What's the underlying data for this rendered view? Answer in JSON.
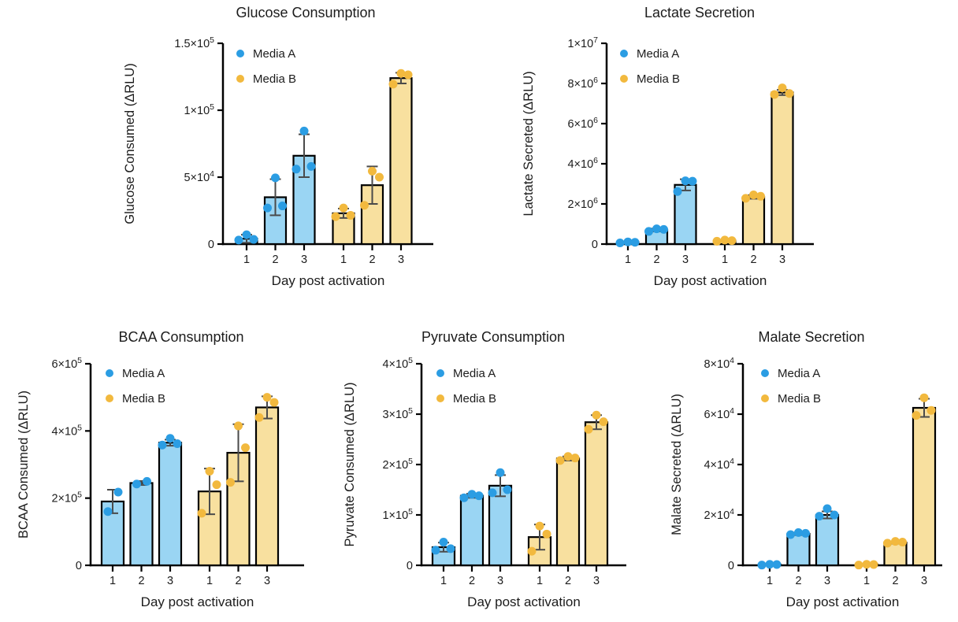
{
  "figure_title": "Metabolite consumption and secretion bar charts",
  "colors": {
    "media_a_point": "#2B9DE3",
    "media_a_fill": "#9AD5F3",
    "media_b_point": "#F2B93E",
    "media_b_fill": "#F8E09F",
    "error_bar": "#4A4A4A",
    "axis": "#000000",
    "text": "#1C1C1C"
  },
  "legend": {
    "items": [
      {
        "label": "Media A"
      },
      {
        "label": "Media B"
      }
    ]
  },
  "chart_data": [
    {
      "id": "glucose",
      "type": "bar",
      "title": "Glucose Consumption",
      "xlabel": "Day post activation",
      "ylabel": "Glucose Consumed (ΔRLU)",
      "categories": [
        "1",
        "2",
        "3"
      ],
      "ylim": [
        0,
        150000
      ],
      "grid": false,
      "legend_position": "top-left-inside",
      "yticks": {
        "values": [
          0,
          50000,
          100000,
          150000
        ],
        "labels": [
          "0",
          "5×10^4",
          "1×10^5",
          "1.5×10^5"
        ]
      },
      "series": [
        {
          "name": "Media A",
          "bars": [
            {
              "day": "1",
              "mean": 4000,
              "sd": 3000,
              "points": [
                3000,
                3500,
                7000
              ]
            },
            {
              "day": "2",
              "mean": 35000,
              "sd": 13500,
              "points": [
                27000,
                28500,
                49500
              ]
            },
            {
              "day": "3",
              "mean": 66000,
              "sd": 16000,
              "points": [
                56000,
                58000,
                84500
              ]
            }
          ]
        },
        {
          "name": "Media B",
          "bars": [
            {
              "day": "1",
              "mean": 23000,
              "sd": 3500,
              "points": [
                20500,
                21500,
                27000
              ]
            },
            {
              "day": "2",
              "mean": 44000,
              "sd": 14000,
              "points": [
                29000,
                50000,
                54500
              ]
            },
            {
              "day": "3",
              "mean": 124000,
              "sd": 4000,
              "points": [
                119500,
                126500,
                127500
              ]
            }
          ]
        }
      ]
    },
    {
      "id": "lactate",
      "type": "bar",
      "title": "Lactate Secretion",
      "xlabel": "Day post activation",
      "ylabel": "Lactate Secreted (ΔRLU)",
      "categories": [
        "1",
        "2",
        "3"
      ],
      "ylim": [
        0,
        10000000
      ],
      "grid": false,
      "legend_position": "top-left-inside",
      "yticks": {
        "values": [
          0,
          2000000,
          4000000,
          6000000,
          8000000,
          10000000
        ],
        "labels": [
          "0",
          "2×10^6",
          "4×10^6",
          "6×10^6",
          "8×10^6",
          "1×10^7"
        ]
      },
      "series": [
        {
          "name": "Media A",
          "bars": [
            {
              "day": "1",
              "mean": 90000,
              "sd": 30000,
              "points": [
                60000,
                90000,
                110000
              ]
            },
            {
              "day": "2",
              "mean": 700000,
              "sd": 70000,
              "points": [
                630000,
                730000,
                760000
              ]
            },
            {
              "day": "3",
              "mean": 2950000,
              "sd": 280000,
              "points": [
                2620000,
                3130000,
                3150000
              ]
            }
          ]
        },
        {
          "name": "Media B",
          "bars": [
            {
              "day": "1",
              "mean": 170000,
              "sd": 30000,
              "points": [
                140000,
                170000,
                200000
              ]
            },
            {
              "day": "2",
              "mean": 2350000,
              "sd": 90000,
              "points": [
                2280000,
                2380000,
                2450000
              ]
            },
            {
              "day": "3",
              "mean": 7550000,
              "sd": 130000,
              "points": [
                7450000,
                7500000,
                7780000
              ]
            }
          ]
        }
      ]
    },
    {
      "id": "bcaa",
      "type": "bar",
      "title": "BCAA Consumption",
      "xlabel": "Day post activation",
      "ylabel": "BCAA Consumed (ΔRLU)",
      "categories": [
        "1",
        "2",
        "3"
      ],
      "ylim": [
        0,
        600000
      ],
      "grid": false,
      "legend_position": "top-left-inside",
      "yticks": {
        "values": [
          0,
          200000,
          400000,
          600000
        ],
        "labels": [
          "0",
          "2×10^5",
          "4×10^5",
          "6×10^5"
        ]
      },
      "series": [
        {
          "name": "Media A",
          "bars": [
            {
              "day": "1",
              "mean": 190000,
              "sd": 35000,
              "points": [
                160000,
                218000
              ]
            },
            {
              "day": "2",
              "mean": 245000,
              "sd": 6000,
              "points": [
                242000,
                250000
              ]
            },
            {
              "day": "3",
              "mean": 365000,
              "sd": 9000,
              "points": [
                358000,
                362000,
                378000
              ]
            }
          ]
        },
        {
          "name": "Media B",
          "bars": [
            {
              "day": "1",
              "mean": 220000,
              "sd": 68000,
              "points": [
                155000,
                240000,
                280000
              ]
            },
            {
              "day": "2",
              "mean": 335000,
              "sd": 85000,
              "points": [
                247000,
                350000,
                415000
              ]
            },
            {
              "day": "3",
              "mean": 470000,
              "sd": 33000,
              "points": [
                440000,
                485000,
                500000
              ]
            }
          ]
        }
      ]
    },
    {
      "id": "pyruvate",
      "type": "bar",
      "title": "Pyruvate Consumption",
      "xlabel": "Day post activation",
      "ylabel": "Pyruvate Consumed (ΔRLU)",
      "categories": [
        "1",
        "2",
        "3"
      ],
      "ylim": [
        0,
        400000
      ],
      "grid": false,
      "legend_position": "top-left-inside",
      "yticks": {
        "values": [
          0,
          100000,
          200000,
          300000,
          400000
        ],
        "labels": [
          "0",
          "1×10^5",
          "2×10^5",
          "3×10^5",
          "4×10^5"
        ]
      },
      "series": [
        {
          "name": "Media A",
          "bars": [
            {
              "day": "1",
              "mean": 36000,
              "sd": 9000,
              "points": [
                30000,
                33000,
                46000
              ]
            },
            {
              "day": "2",
              "mean": 138000,
              "sd": 4000,
              "points": [
                134000,
                138000,
                141000
              ]
            },
            {
              "day": "3",
              "mean": 158000,
              "sd": 21000,
              "points": [
                144000,
                150000,
                184000
              ]
            }
          ]
        },
        {
          "name": "Media B",
          "bars": [
            {
              "day": "1",
              "mean": 56000,
              "sd": 25000,
              "points": [
                28000,
                62000,
                78000
              ]
            },
            {
              "day": "2",
              "mean": 212000,
              "sd": 4000,
              "points": [
                208000,
                213000,
                216000
              ]
            },
            {
              "day": "3",
              "mean": 284000,
              "sd": 14000,
              "points": [
                270000,
                285000,
                298000
              ]
            }
          ]
        }
      ]
    },
    {
      "id": "malate",
      "type": "bar",
      "title": "Malate Secretion",
      "xlabel": "Day post activation",
      "ylabel": "Malate Secreted (ΔRLU)",
      "categories": [
        "1",
        "2",
        "3"
      ],
      "ylim": [
        0,
        80000
      ],
      "grid": false,
      "legend_position": "top-left-inside",
      "yticks": {
        "values": [
          0,
          20000,
          40000,
          60000,
          80000
        ],
        "labels": [
          "0",
          "2×10^4",
          "4×10^4",
          "6×10^4",
          "8×10^4"
        ]
      },
      "series": [
        {
          "name": "Media A",
          "bars": [
            {
              "day": "1",
              "mean": 300,
              "sd": 200,
              "points": [
                100,
                300,
                400
              ]
            },
            {
              "day": "2",
              "mean": 12500,
              "sd": 500,
              "points": [
                12200,
                12700,
                13000
              ]
            },
            {
              "day": "3",
              "mean": 20000,
              "sd": 1400,
              "points": [
                19500,
                20000,
                22500
              ]
            }
          ]
        },
        {
          "name": "Media B",
          "bars": [
            {
              "day": "1",
              "mean": 300,
              "sd": 200,
              "points": [
                100,
                300,
                400
              ]
            },
            {
              "day": "2",
              "mean": 9000,
              "sd": 400,
              "points": [
                8800,
                9200,
                9500
              ]
            },
            {
              "day": "3",
              "mean": 62500,
              "sd": 3600,
              "points": [
                59500,
                61500,
                66500
              ]
            }
          ]
        }
      ]
    }
  ]
}
